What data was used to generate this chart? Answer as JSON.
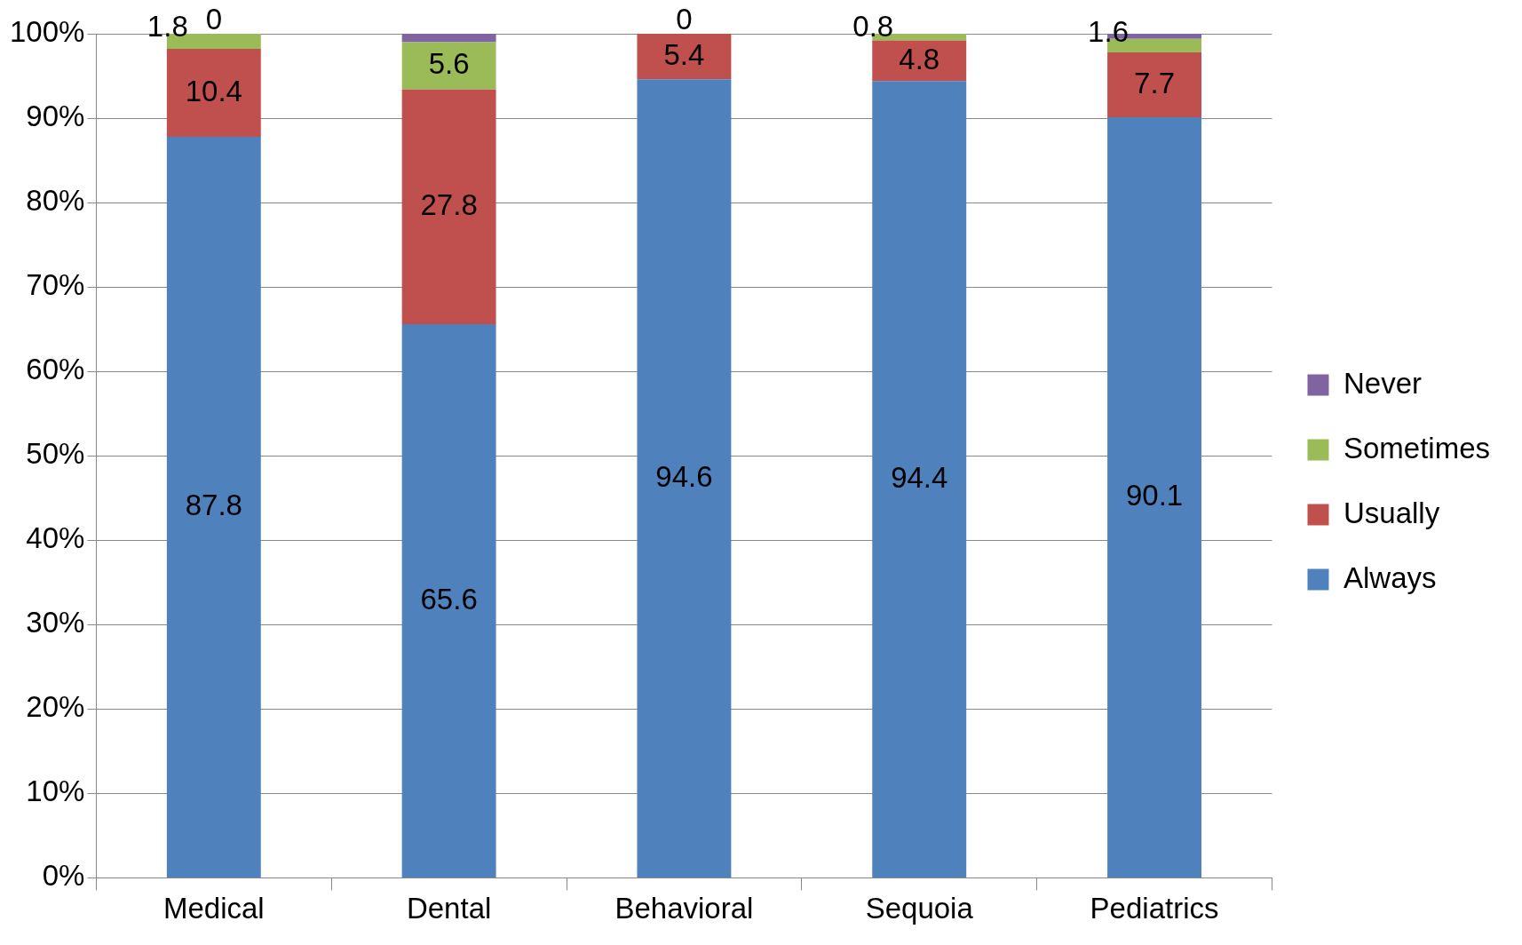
{
  "chart_data": {
    "type": "bar",
    "stacked": true,
    "categories": [
      "Medical",
      "Dental",
      "Behavioral",
      "Sequoia",
      "Pediatrics"
    ],
    "series": [
      {
        "name": "Always",
        "color": "#4f81bd",
        "values": [
          87.8,
          65.6,
          94.6,
          94.4,
          90.1
        ],
        "value_labels": [
          "87.8",
          "65.6",
          "94.6",
          "94.4",
          "90.1"
        ]
      },
      {
        "name": "Usually",
        "color": "#c0504d",
        "values": [
          10.4,
          27.8,
          5.4,
          4.8,
          7.7
        ],
        "value_labels": [
          "10.4",
          "27.8",
          "5.4",
          "4.8",
          "7.7"
        ]
      },
      {
        "name": "Sometimes",
        "color": "#9bbb59",
        "values": [
          1.8,
          5.6,
          0,
          0.8,
          1.6
        ],
        "value_labels": [
          "1.8",
          "5.6",
          "0",
          "0.8",
          "1.6"
        ]
      },
      {
        "name": "Never",
        "color": "#8064a2",
        "values": [
          0,
          1.0,
          0,
          0,
          0.6
        ],
        "value_labels": [
          "0",
          null,
          null,
          null,
          null
        ]
      }
    ],
    "ylim": [
      0,
      100
    ],
    "yticks": [
      {
        "value": 0,
        "label": "0%"
      },
      {
        "value": 10,
        "label": "10%"
      },
      {
        "value": 20,
        "label": "20%"
      },
      {
        "value": 30,
        "label": "30%"
      },
      {
        "value": 40,
        "label": "40%"
      },
      {
        "value": 50,
        "label": "50%"
      },
      {
        "value": 60,
        "label": "60%"
      },
      {
        "value": 70,
        "label": "70%"
      },
      {
        "value": 80,
        "label": "80%"
      },
      {
        "value": 90,
        "label": "90%"
      },
      {
        "value": 100,
        "label": "100%"
      }
    ],
    "grid": "y",
    "legend": "right"
  }
}
